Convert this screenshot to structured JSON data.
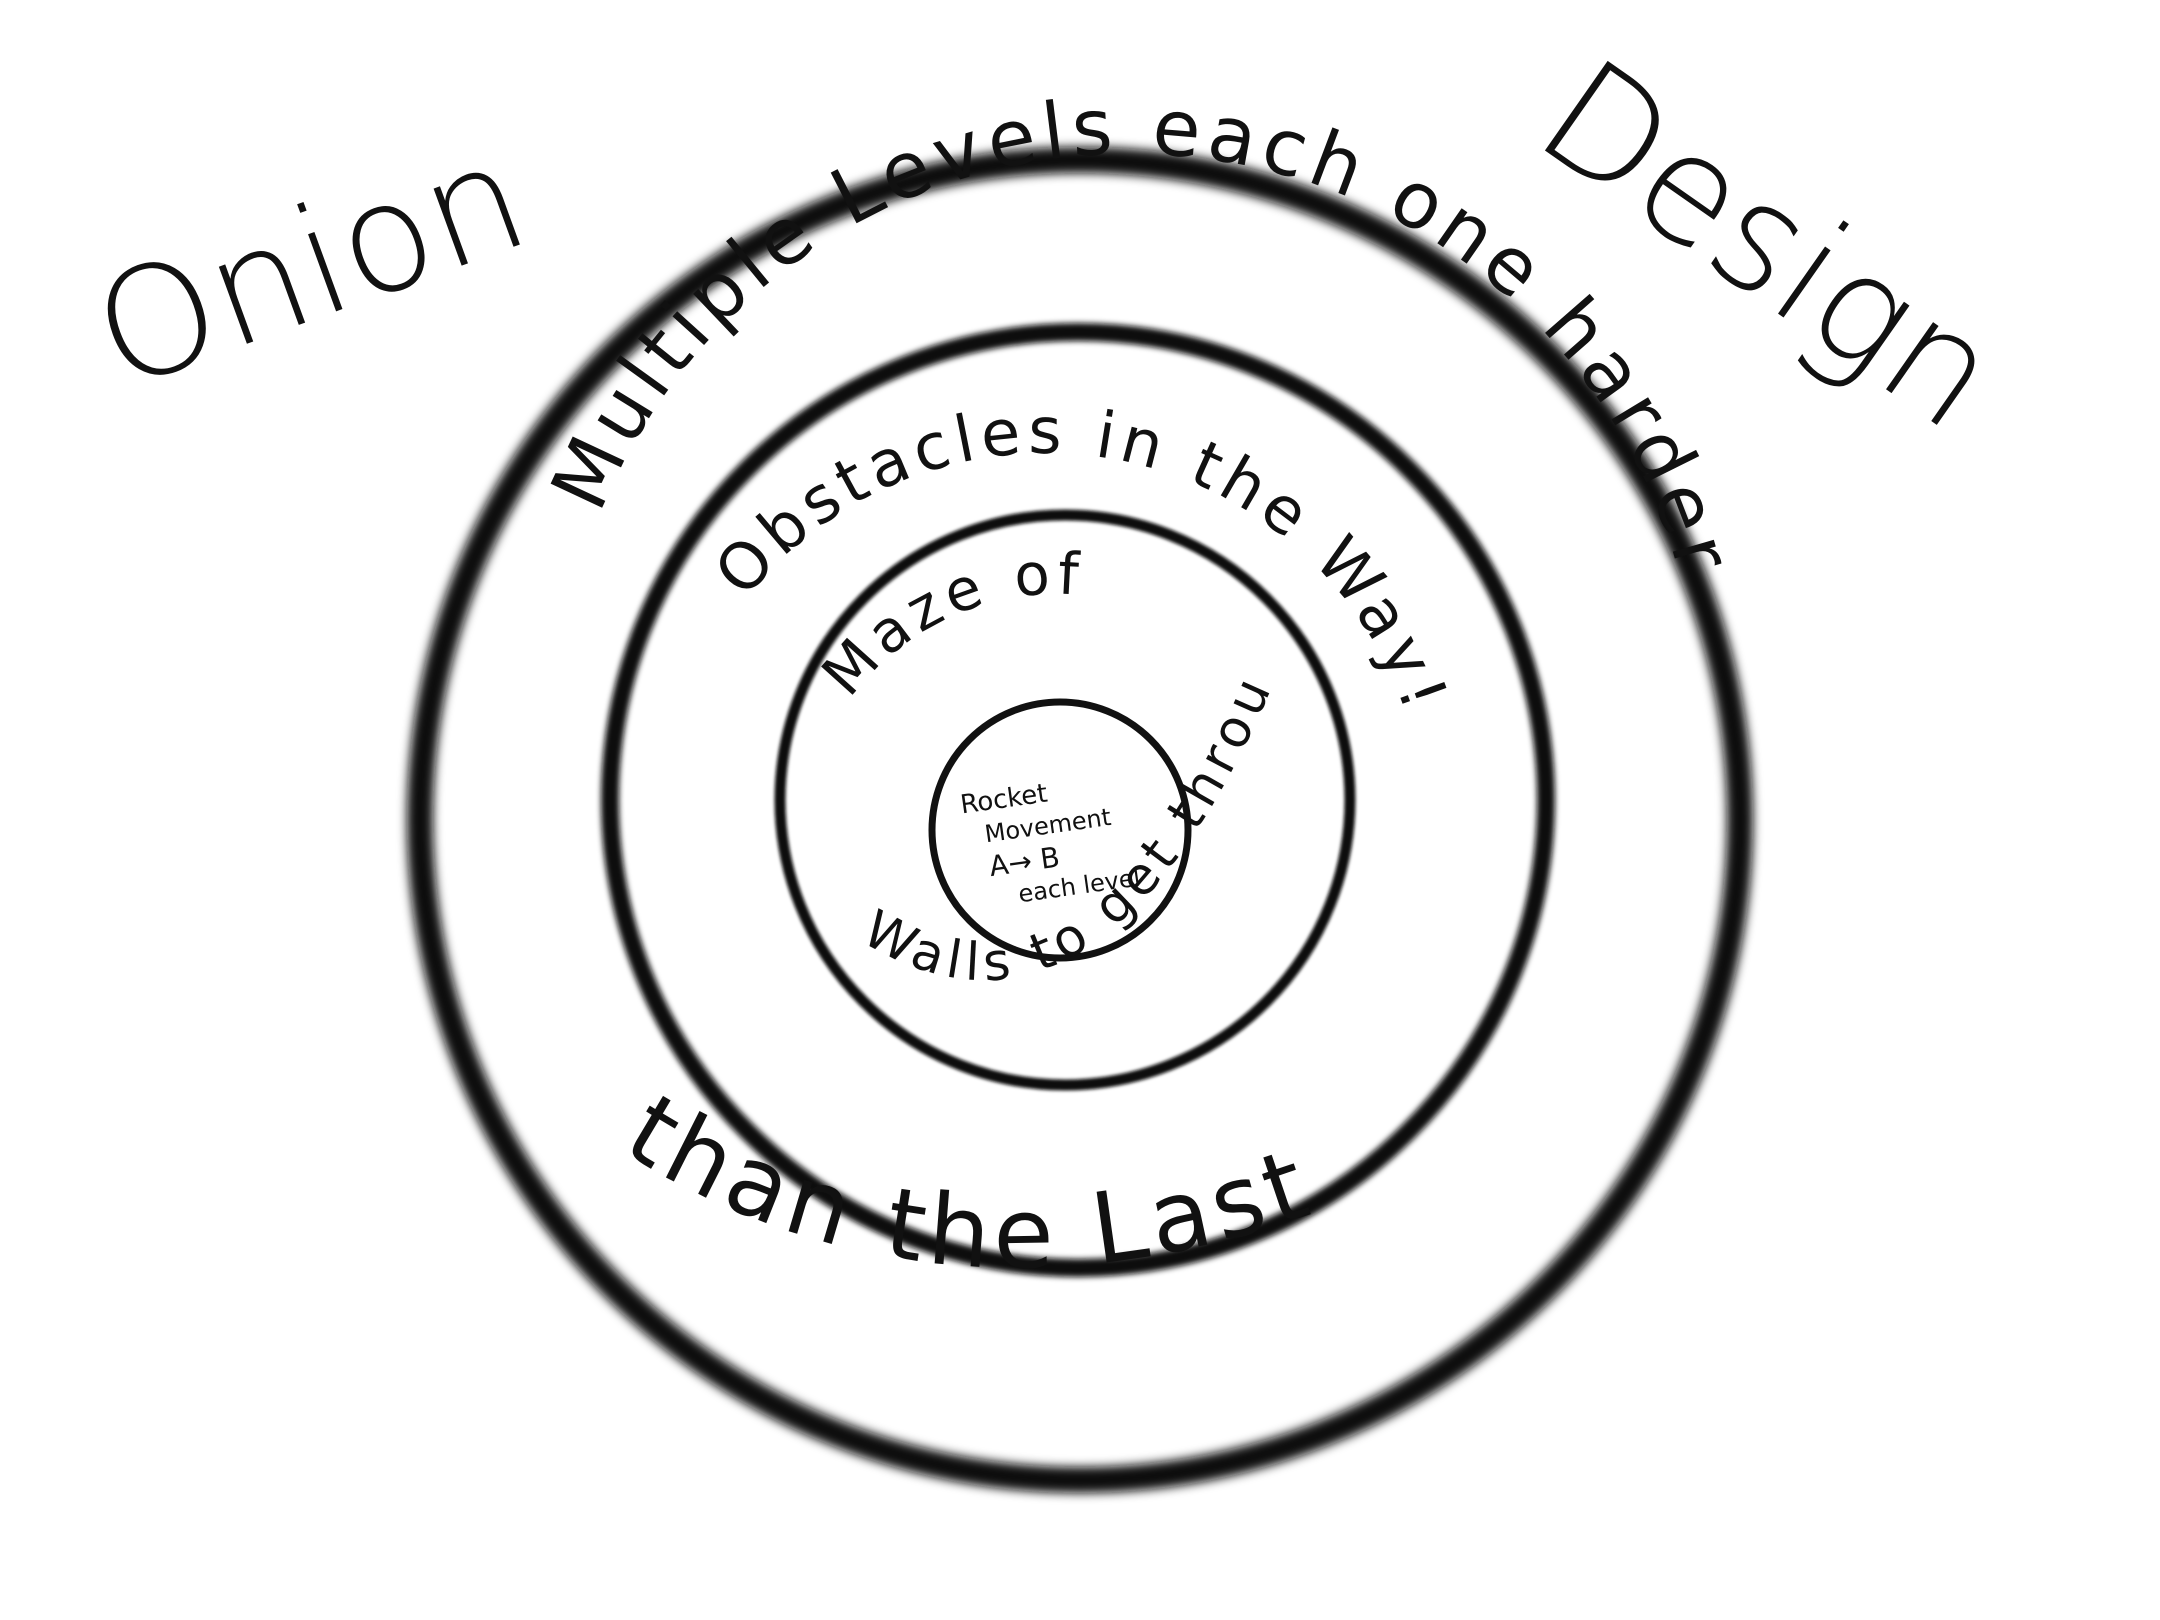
{
  "title": {
    "left": "Onion",
    "right": "Design"
  },
  "rings": {
    "outer_top": "Multiple Levels each one harder",
    "outer_bottom": "than the Last",
    "second": "Obstacles in the Way!",
    "third_top": "Maze of",
    "third_bottom": "Walls to get through"
  },
  "core": {
    "line1": "Rocket",
    "line2": "Movement",
    "line3": "A→ B",
    "line4": "each level"
  },
  "colors": {
    "ink": "#111111",
    "background": "#ffffff"
  }
}
